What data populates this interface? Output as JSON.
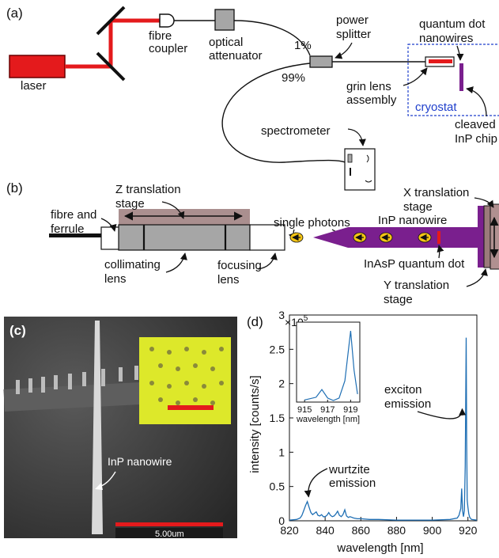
{
  "panel_a": {
    "label": "(a)",
    "laser": "laser",
    "fibre_coupler_1": "fibre",
    "fibre_coupler_2": "coupler",
    "optical_attenuator_1": "optical",
    "optical_attenuator_2": "attenuator",
    "power_splitter_1": "power",
    "power_splitter_2": "splitter",
    "pct_1": "1%",
    "pct_99": "99%",
    "qd_nanowires_1": "quantum dot",
    "qd_nanowires_2": "nanowires",
    "grin_1": "grin lens",
    "grin_2": "assembly",
    "cryostat": "cryostat",
    "cleaved_1": "cleaved",
    "cleaved_2": "InP chip",
    "spectrometer": "spectrometer"
  },
  "panel_b": {
    "label": "(b)",
    "fibre_ferrule_1": "fibre and",
    "fibre_ferrule_2": "ferrule",
    "z_stage_1": "Z translation",
    "z_stage_2": "stage",
    "collimating_1": "collimating",
    "collimating_2": "lens",
    "focusing_1": "focusing",
    "focusing_2": "lens",
    "single_photons": "single photons",
    "inp_nanowire": "InP nanowire",
    "inasp_qd": "InAsP quantum dot",
    "x_stage_1": "X translation",
    "x_stage_2": "stage",
    "y_stage_1": "Y translation",
    "y_stage_2": "stage"
  },
  "panel_c": {
    "label": "(c)",
    "nanowire_label": "InP nanowire",
    "scale_text": "5.00um"
  },
  "chart_data": {
    "type": "line",
    "panel_label": "(d)",
    "xlabel": "wavelength [nm]",
    "ylabel": "intensity [counts/s]",
    "multiplier": "×10",
    "multiplier_exp": "5",
    "xlim": [
      820,
      925
    ],
    "ylim": [
      0,
      3
    ],
    "xticks": [
      "820",
      "840",
      "860",
      "880",
      "900",
      "920"
    ],
    "yticks": [
      "0",
      "0.5",
      "1",
      "1.5",
      "2",
      "2.5",
      "3"
    ],
    "series": [
      {
        "color": "#1f6fb4",
        "x": [
          820,
          824,
          826,
          827,
          828,
          829,
          830,
          831,
          832,
          833,
          834,
          835,
          836,
          837,
          838,
          839,
          840,
          841,
          842,
          843,
          844,
          845,
          846,
          847,
          848,
          849,
          850,
          851,
          852,
          853,
          854,
          856,
          858,
          860,
          865,
          870,
          880,
          890,
          900,
          910,
          914,
          915,
          916,
          916.5,
          917,
          917.5,
          918,
          918.5,
          919,
          919.3,
          919.6,
          920,
          920.5,
          921,
          922,
          925
        ],
        "y": [
          0.01,
          0.02,
          0.04,
          0.08,
          0.15,
          0.22,
          0.28,
          0.2,
          0.12,
          0.09,
          0.11,
          0.13,
          0.08,
          0.07,
          0.09,
          0.06,
          0.06,
          0.08,
          0.12,
          0.08,
          0.06,
          0.07,
          0.1,
          0.14,
          0.08,
          0.06,
          0.09,
          0.16,
          0.07,
          0.05,
          0.06,
          0.04,
          0.03,
          0.03,
          0.02,
          0.02,
          0.01,
          0.01,
          0.01,
          0.02,
          0.04,
          0.08,
          0.18,
          0.47,
          0.15,
          0.06,
          0.15,
          0.8,
          2.67,
          1.2,
          0.3,
          0.2,
          0.1,
          0.05,
          0.02,
          0.01
        ]
      }
    ],
    "annotations": [
      {
        "lines": [
          "exciton",
          "emission"
        ]
      },
      {
        "lines": [
          "wurtzite",
          "emission"
        ]
      }
    ],
    "inset": {
      "xlabel": "wavelength [nm]",
      "xticks": [
        "915",
        "917",
        "919"
      ],
      "xlim": [
        914.3,
        919.8
      ],
      "ylim": [
        0,
        3
      ]
    }
  }
}
